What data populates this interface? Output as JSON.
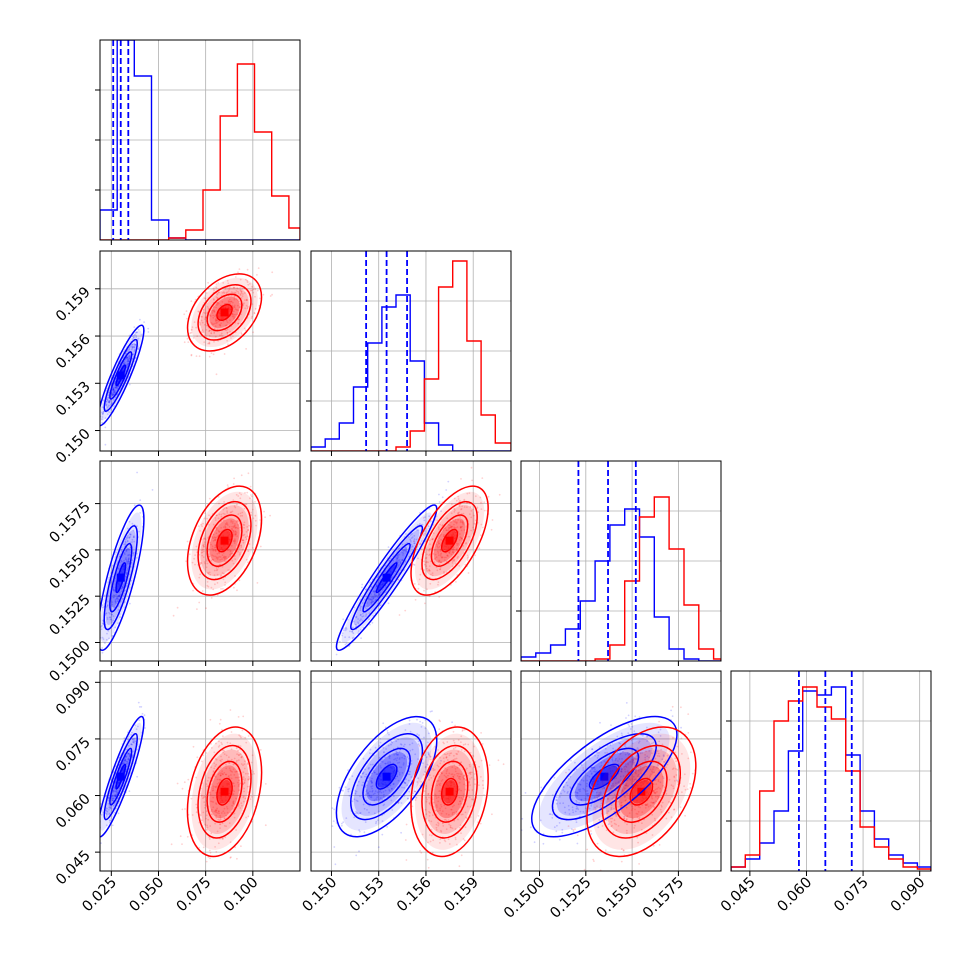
{
  "chart_data": {
    "type": "corner",
    "grid": true,
    "colors": {
      "series_a": "#0000ff",
      "series_b": "#ff0000",
      "grid": "#b0b0b0"
    },
    "series": [
      {
        "color": "#0000ff",
        "mean": [
          0.03,
          0.1535,
          0.1535,
          0.065
        ],
        "std": [
          0.005,
          0.0013,
          0.0016,
          0.0065
        ],
        "quantiles": [
          [
            0.026,
            0.03,
            0.034
          ],
          [
            0.1522,
            0.1535,
            0.1548
          ],
          [
            0.1521,
            0.1537,
            0.1552
          ],
          [
            0.058,
            0.065,
            0.072
          ]
        ]
      },
      {
        "color": "#ff0000",
        "mean": [
          0.085,
          0.1575,
          0.1555,
          0.061
        ],
        "std": [
          0.008,
          0.001,
          0.0012,
          0.007
        ]
      }
    ],
    "params": [
      {
        "range": [
          0.019,
          0.125
        ],
        "ticks": [
          0.025,
          0.05,
          0.075,
          0.1
        ],
        "tick_labels": [
          "0.025",
          "0.050",
          "0.075",
          "0.100"
        ]
      },
      {
        "range": [
          0.1487,
          0.1614
        ],
        "ticks": [
          0.15,
          0.153,
          0.156,
          0.159
        ],
        "tick_labels": [
          "0.150",
          "0.153",
          "0.156",
          "0.159"
        ]
      },
      {
        "range": [
          0.149,
          0.1598
        ],
        "ticks": [
          0.15,
          0.1525,
          0.155,
          0.1575
        ],
        "tick_labels": [
          "0.1500",
          "0.1525",
          "0.1550",
          "0.1575"
        ]
      },
      {
        "range": [
          0.04,
          0.093
        ],
        "ticks": [
          0.045,
          0.06,
          0.075,
          0.09
        ],
        "tick_labels": [
          "0.045",
          "0.060",
          "0.075",
          "0.090"
        ]
      }
    ],
    "correlations": {
      "series_a": {
        "0-1": 0.9,
        "0-2": 0.8,
        "0-3": 0.9,
        "1-2": 0.95,
        "1-3": 0.6,
        "2-3": 0.7
      },
      "series_b": {
        "0-1": 0.4,
        "0-2": 0.4,
        "0-3": 0.3,
        "1-2": 0.6,
        "1-3": 0.2,
        "2-3": 0.4
      }
    },
    "histograms": [
      {
        "bins": [
          0.019,
          0.0281,
          0.0372,
          0.0463,
          0.0554,
          0.0645,
          0.0736,
          0.0827,
          0.0918,
          0.1009,
          0.11,
          0.1191,
          0.125
        ],
        "series_a": [
          0.15,
          1.0,
          0.82,
          0.1,
          0.01,
          0,
          0,
          0,
          0,
          0,
          0,
          0
        ],
        "series_b": [
          0,
          0,
          0,
          0,
          0.01,
          0.05,
          0.25,
          0.62,
          0.88,
          0.54,
          0.22,
          0.06
        ],
        "quantiles_series": "series_a"
      },
      {
        "bins": [
          0.1487,
          0.1496,
          0.1505,
          0.1514,
          0.1523,
          0.1532,
          0.1541,
          0.155,
          0.1559,
          0.1568,
          0.1577,
          0.1586,
          0.1595,
          0.1604,
          0.1614
        ],
        "series_a": [
          0.02,
          0.06,
          0.14,
          0.32,
          0.54,
          0.72,
          0.78,
          0.45,
          0.14,
          0.03,
          0,
          0,
          0,
          0
        ],
        "series_b": [
          0,
          0,
          0,
          0,
          0,
          0,
          0.02,
          0.1,
          0.36,
          0.82,
          0.95,
          0.55,
          0.18,
          0.04
        ],
        "quantiles_series": "series_a"
      },
      {
        "bins": [
          0.149,
          0.1498,
          0.1506,
          0.1514,
          0.1522,
          0.153,
          0.1538,
          0.1546,
          0.1554,
          0.1562,
          0.157,
          0.1578,
          0.1586,
          0.1594,
          0.1598
        ],
        "series_a": [
          0.02,
          0.04,
          0.08,
          0.16,
          0.3,
          0.5,
          0.68,
          0.76,
          0.62,
          0.22,
          0.06,
          0.01,
          0,
          0
        ],
        "series_b": [
          0,
          0,
          0,
          0,
          0,
          0.01,
          0.08,
          0.4,
          0.72,
          0.82,
          0.56,
          0.28,
          0.06,
          0.01
        ],
        "quantiles_series": "series_a"
      },
      {
        "bins": [
          0.04,
          0.0438,
          0.0476,
          0.0514,
          0.0552,
          0.059,
          0.0628,
          0.0666,
          0.0704,
          0.0742,
          0.078,
          0.0818,
          0.0856,
          0.0894,
          0.093
        ],
        "series_a": [
          0.02,
          0.06,
          0.14,
          0.3,
          0.6,
          0.9,
          0.88,
          0.92,
          0.58,
          0.3,
          0.16,
          0.08,
          0.04,
          0.02
        ],
        "series_b": [
          0.02,
          0.08,
          0.4,
          0.75,
          0.85,
          0.92,
          0.82,
          0.76,
          0.5,
          0.22,
          0.12,
          0.06,
          0.02,
          0.01
        ],
        "quantiles_series": "series_a"
      }
    ]
  }
}
